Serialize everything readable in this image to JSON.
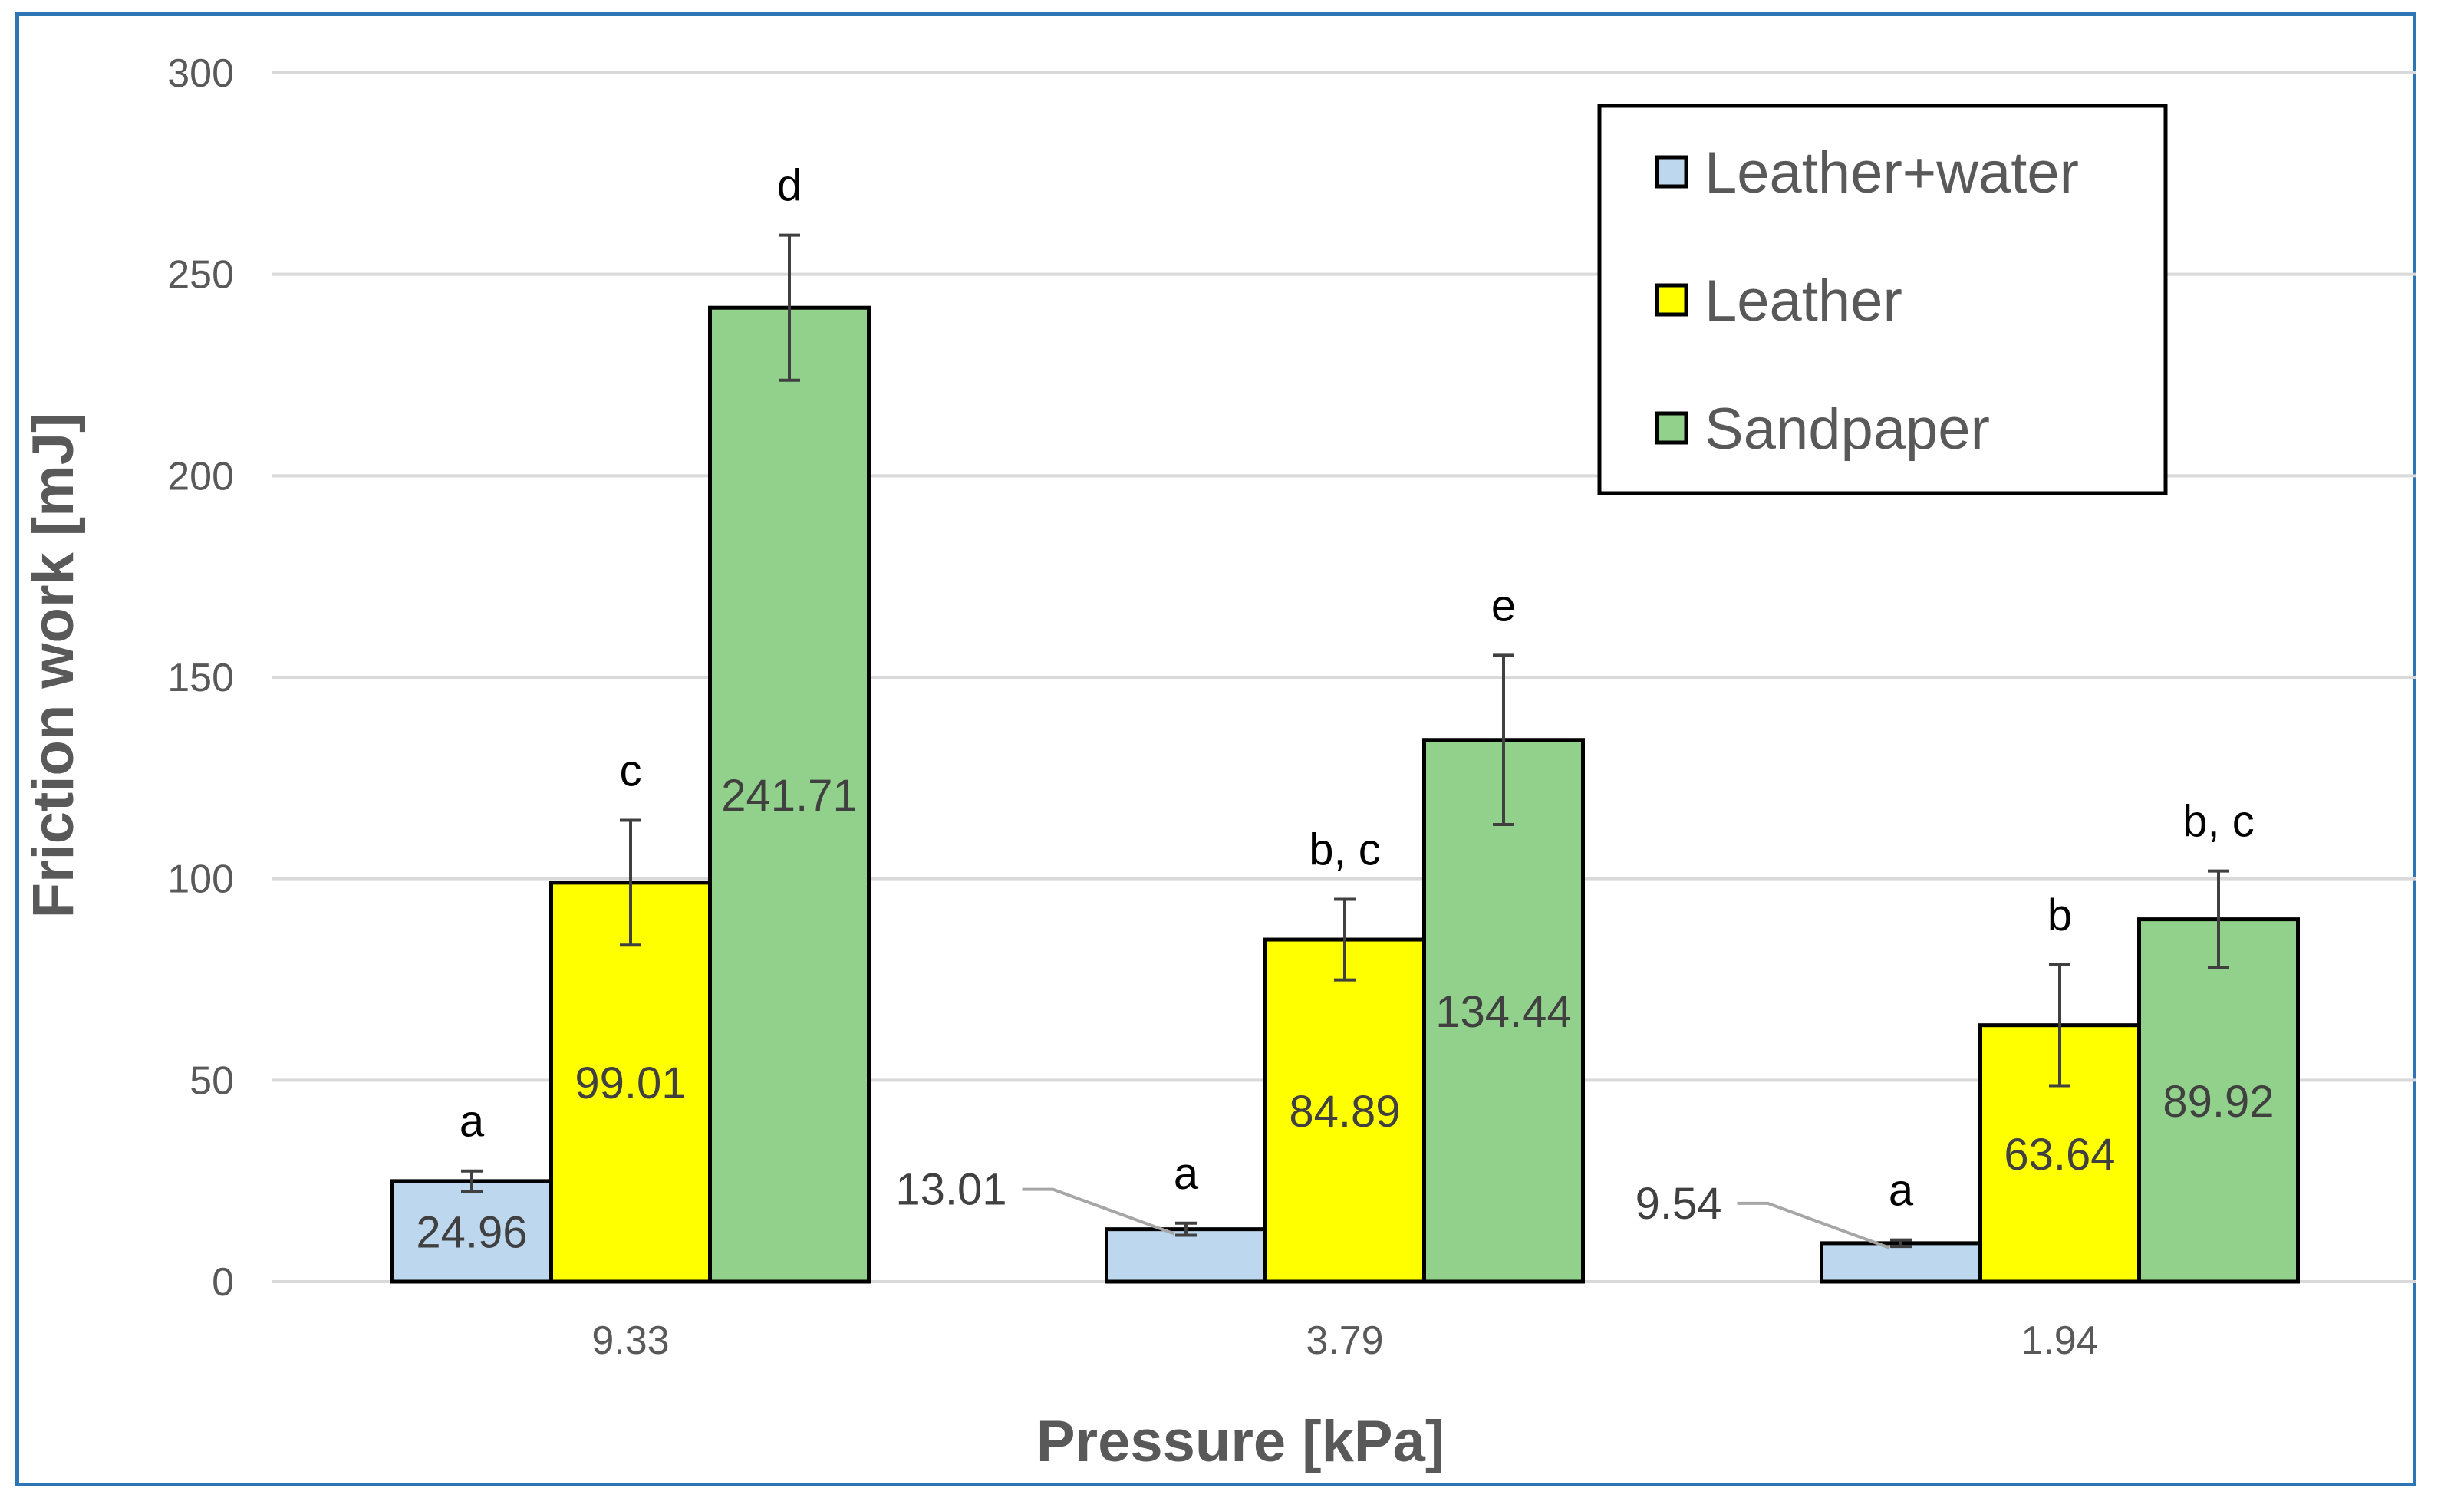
{
  "chart_data": {
    "type": "bar",
    "xlabel": "Pressure [kPa]",
    "ylabel": "Friction work [mJ]",
    "ylim": [
      0,
      300
    ],
    "yticks": [
      0,
      50,
      100,
      150,
      200,
      250,
      300
    ],
    "categories": [
      "9.33",
      "3.79",
      "1.94"
    ],
    "grid": true,
    "legend_position": "top-right",
    "series": [
      {
        "name": "Leather+water",
        "color": "#bdd7ee",
        "values": [
          24.96,
          13.01,
          9.54
        ],
        "errors": [
          2.5,
          1.5,
          0.8
        ],
        "data_labels": [
          "24.96",
          "13.01",
          "9.54"
        ],
        "significance": [
          "a",
          "a",
          "a"
        ]
      },
      {
        "name": "Leather",
        "color": "#ffff00",
        "values": [
          99.01,
          84.89,
          63.64
        ],
        "errors": [
          15.5,
          10,
          15
        ],
        "data_labels": [
          "99.01",
          "84.89",
          "63.64"
        ],
        "significance": [
          "c",
          "b, c",
          "b"
        ]
      },
      {
        "name": "Sandpaper",
        "color": "#92d18b",
        "values": [
          241.71,
          134.44,
          89.92
        ],
        "errors": [
          18,
          21,
          12
        ],
        "data_labels": [
          "241.71",
          "134.44",
          "89.92"
        ],
        "significance": [
          "d",
          "e",
          "b, c"
        ]
      }
    ]
  }
}
